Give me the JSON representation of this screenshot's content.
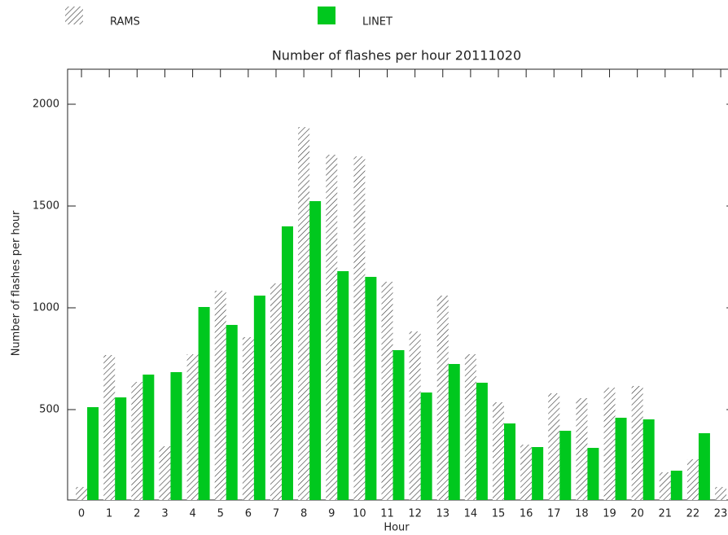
{
  "chart_data": {
    "type": "bar",
    "title": "Number of flashes per hour 20111020",
    "x_label": "Hour",
    "y_label": "Number of flashes per hour",
    "categories": [
      "0",
      "1",
      "2",
      "3",
      "4",
      "5",
      "6",
      "7",
      "8",
      "9",
      "10",
      "11",
      "12",
      "13",
      "14",
      "15",
      "16",
      "17",
      "18",
      "19",
      "20",
      "21",
      "22",
      "23"
    ],
    "series": [
      {
        "name": "RAMS",
        "color": "#333333",
        "pattern": "hatch",
        "values": [
          120,
          768,
          636,
          320,
          772,
          1084,
          856,
          1120,
          1888,
          1752,
          1744,
          1128,
          884,
          1060,
          772,
          536,
          328,
          580,
          556,
          608,
          616,
          192,
          256,
          120
        ]
      },
      {
        "name": "LINET",
        "color": "#00c81e",
        "values": [
          512,
          560,
          672,
          684,
          1004,
          916,
          1060,
          1400,
          1524,
          1180,
          1152,
          792,
          584,
          724,
          632,
          432,
          316,
          396,
          312,
          460,
          452,
          200,
          384,
          null
        ]
      }
    ],
    "ylim": [
      56,
      2172
    ],
    "yticks": [
      500,
      1000,
      1500,
      2000
    ]
  }
}
